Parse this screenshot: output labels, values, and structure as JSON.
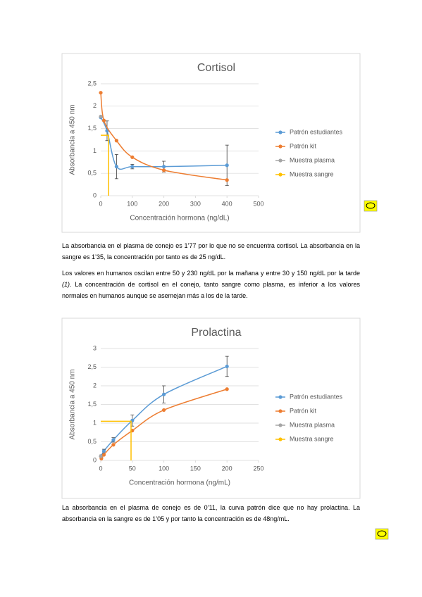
{
  "chart_data": [
    {
      "type": "line",
      "title": "Cortisol",
      "x_label": "Concentración hormona (ng/dL)",
      "y_label": "Absorbancia a 450 nm",
      "xlim": [
        0,
        500
      ],
      "xticks": [
        0,
        100,
        200,
        300,
        400,
        500
      ],
      "ylim": [
        0,
        2.5
      ],
      "yticks": [
        0,
        {
          "value": 0.5,
          "label": "0,5"
        },
        1,
        {
          "value": 1.5,
          "label": "1,5"
        },
        2,
        {
          "value": 2.5,
          "label": "2,5"
        }
      ],
      "grid": true,
      "legend": "right",
      "series": [
        {
          "name": "Patrón estudiantes",
          "color": "#5b9bd5",
          "x": [
            0,
            20,
            50,
            100,
            200,
            400
          ],
          "values": [
            1.75,
            1.45,
            0.65,
            0.65,
            0.65,
            0.68
          ],
          "errors": [
            0,
            0.22,
            0.27,
            0.05,
            0.12,
            0.45
          ]
        },
        {
          "name": "Patrón kit",
          "color": "#ed7d31",
          "x": [
            0,
            10,
            50,
            100,
            200,
            400
          ],
          "values": [
            2.3,
            1.68,
            1.23,
            0.86,
            0.57,
            0.35
          ]
        },
        {
          "name": "Muestra plasma",
          "color": "#a5a5a5",
          "x": [
            0
          ],
          "values": [
            1.77
          ]
        },
        {
          "name": "Muestra sangre",
          "color": "#ffc000",
          "x": [
            0,
            25,
            25
          ],
          "values": [
            1.35,
            1.35,
            0
          ]
        }
      ]
    },
    {
      "type": "line",
      "title": "Prolactina",
      "x_label": "Concentración hormona (ng/mL)",
      "y_label": "Absorbancia a 450 nm",
      "xlim": [
        0,
        250
      ],
      "xticks": [
        0,
        50,
        100,
        150,
        200,
        250
      ],
      "ylim": [
        0,
        3
      ],
      "yticks": [
        0,
        {
          "value": 0.5,
          "label": "0,5"
        },
        1,
        {
          "value": 1.5,
          "label": "1,5"
        },
        2,
        {
          "value": 2.5,
          "label": "2,5"
        },
        3
      ],
      "grid": true,
      "legend": "right",
      "series": [
        {
          "name": "Patrón estudiantes",
          "color": "#5b9bd5",
          "x": [
            1,
            5,
            20,
            50,
            100,
            200
          ],
          "values": [
            0.12,
            0.25,
            0.55,
            1.07,
            1.77,
            2.52
          ],
          "errors": [
            0.03,
            0.05,
            0.06,
            0.15,
            0.23,
            0.27
          ]
        },
        {
          "name": "Patrón kit",
          "color": "#ed7d31",
          "x": [
            1,
            5,
            20,
            50,
            100,
            200
          ],
          "values": [
            0.05,
            0.15,
            0.42,
            0.8,
            1.35,
            1.91
          ]
        },
        {
          "name": "Muestra plasma",
          "color": "#a5a5a5",
          "x": [
            0
          ],
          "values": [
            0.11
          ]
        },
        {
          "name": "Muestra sangre",
          "color": "#ffc000",
          "x": [
            0,
            48,
            48
          ],
          "values": [
            1.05,
            1.05,
            0
          ]
        }
      ]
    }
  ],
  "paragraphs": [
    [
      "La absorbancia en el plasma de conejo es 1’77 por lo que no se encuentra cortisol. La absorbancia en la sangre es 1’35, la concentración por tanto es de 25 ng/dL."
    ],
    [
      "Los valores en humanos oscilan entre 50 y 230 ng/dL por la mañana y entre 30 y 150 ng/dL por la tarde ",
      "(1)",
      ". La concentración de cortisol en el conejo, tanto sangre como plasma, es inferior a los valores normales en humanos aunque se asemejan más a los de la tarde."
    ],
    [
      "La absorbancia en el plasma de conejo es de 0’11, la curva patrón dice que no hay prolactina. La absorbancia en la sangre es de 1’05 y por tanto la concentración es de 48ng/mL."
    ]
  ]
}
